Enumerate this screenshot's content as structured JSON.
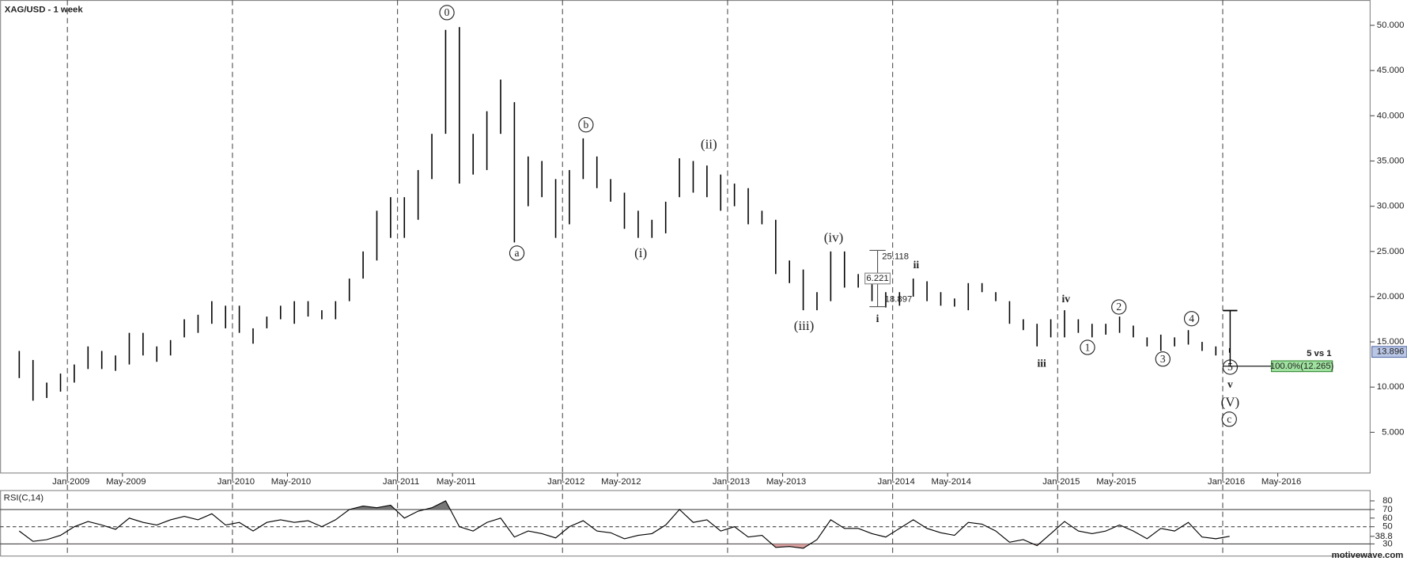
{
  "chart_data": [
    {
      "type": "ohlc",
      "title": "XAG/USD - 1 week",
      "x": [
        "Sep-2008",
        "Oct-2008",
        "Nov-2008",
        "Dec-2008",
        "Jan-2009",
        "Feb-2009",
        "Mar-2009",
        "Apr-2009",
        "May-2009",
        "Jun-2009",
        "Jul-2009",
        "Aug-2009",
        "Sep-2009",
        "Oct-2009",
        "Nov-2009",
        "Dec-2009",
        "Jan-2010",
        "Feb-2010",
        "Mar-2010",
        "Apr-2010",
        "May-2010",
        "Jun-2010",
        "Jul-2010",
        "Aug-2010",
        "Sep-2010",
        "Oct-2010",
        "Nov-2010",
        "Dec-2010",
        "Jan-2011",
        "Feb-2011",
        "Mar-2011",
        "Apr-2011",
        "May-2011",
        "Jun-2011",
        "Jul-2011",
        "Aug-2011",
        "Sep-2011",
        "Oct-2011",
        "Nov-2011",
        "Dec-2011",
        "Jan-2012",
        "Feb-2012",
        "Mar-2012",
        "Apr-2012",
        "May-2012",
        "Jun-2012",
        "Jul-2012",
        "Aug-2012",
        "Sep-2012",
        "Oct-2012",
        "Nov-2012",
        "Dec-2012",
        "Jan-2013",
        "Feb-2013",
        "Mar-2013",
        "Apr-2013",
        "May-2013",
        "Jun-2013",
        "Jul-2013",
        "Aug-2013",
        "Sep-2013",
        "Oct-2013",
        "Nov-2013",
        "Dec-2013",
        "Jan-2014",
        "Feb-2014",
        "Mar-2014",
        "Apr-2014",
        "May-2014",
        "Jun-2014",
        "Jul-2014",
        "Aug-2014",
        "Sep-2014",
        "Oct-2014",
        "Nov-2014",
        "Dec-2014",
        "Jan-2015",
        "Feb-2015",
        "Mar-2015",
        "Apr-2015",
        "May-2015",
        "Jun-2015",
        "Jul-2015",
        "Aug-2015",
        "Sep-2015",
        "Oct-2015",
        "Nov-2015",
        "Dec-2015",
        "Jan-2016"
      ],
      "high": [
        14,
        13,
        10.5,
        11.5,
        12.5,
        14.5,
        14,
        13.5,
        16,
        16,
        14.5,
        15.2,
        17.5,
        18,
        19.5,
        19,
        19,
        16.5,
        17.8,
        19,
        19.5,
        19.5,
        18.5,
        19.5,
        22,
        25,
        29.5,
        31,
        31,
        34,
        38,
        49.5,
        49.8,
        38,
        40.5,
        44,
        41.5,
        35.5,
        35,
        33,
        34,
        37.5,
        35.5,
        33,
        31.5,
        29.5,
        28.5,
        30.5,
        35.3,
        35,
        34.5,
        33.5,
        32.5,
        32,
        29.5,
        28.5,
        24,
        23,
        20.5,
        25,
        25,
        22.5,
        22,
        20.5,
        20.5,
        22,
        21.7,
        20.5,
        19.8,
        21.5,
        21.5,
        20.5,
        19.5,
        17.5,
        17,
        17.5,
        18.5,
        17.5,
        17,
        17,
        17.8,
        16.8,
        15.5,
        15.8,
        15.5,
        16.3,
        15,
        14.5,
        14.3
      ],
      "low": [
        11,
        8.5,
        8.8,
        9.5,
        10.5,
        12,
        12,
        11.8,
        12.5,
        13.5,
        12.8,
        13.5,
        15.5,
        16,
        17,
        16.5,
        16,
        14.8,
        16.5,
        17.5,
        17,
        17.8,
        17.5,
        17.5,
        19.5,
        22,
        24,
        26.5,
        26.5,
        28.5,
        33,
        38,
        32.5,
        33.5,
        34,
        38,
        26,
        30,
        31,
        26.5,
        28,
        33,
        32,
        30.5,
        27.5,
        26.5,
        26.5,
        27,
        31,
        31.5,
        31,
        29.5,
        30,
        28,
        28,
        22.5,
        21.5,
        18.5,
        18.5,
        19.5,
        21,
        21,
        19.5,
        18.8,
        19,
        20,
        19.5,
        19,
        18.9,
        18.5,
        20.5,
        19.5,
        17,
        16.3,
        14.5,
        15.5,
        15.5,
        16,
        15.5,
        15.8,
        16,
        15.5,
        14.5,
        14,
        14.5,
        14.7,
        14,
        13.5,
        13.8
      ],
      "color": "#000000",
      "ylim": [
        0.5,
        52.8
      ],
      "yticks": [
        {
          "value": 5,
          "label": "5.000"
        },
        {
          "value": 10,
          "label": "10.000"
        },
        {
          "value": 15,
          "label": "15.000"
        },
        {
          "value": 20,
          "label": "20.000"
        },
        {
          "value": 25,
          "label": "25.000"
        },
        {
          "value": 30,
          "label": "30.000"
        },
        {
          "value": 35,
          "label": "35.000"
        },
        {
          "value": 40,
          "label": "40.000"
        },
        {
          "value": 45,
          "label": "45.000"
        },
        {
          "value": 50,
          "label": "50.000"
        }
      ],
      "xticks": [
        "Jan-2009",
        "May-2009",
        "Jan-2010",
        "May-2010",
        "Jan-2011",
        "May-2011",
        "Jan-2012",
        "May-2012",
        "Jan-2013",
        "May-2013",
        "Jan-2014",
        "May-2014",
        "Jan-2015",
        "May-2015",
        "Jan-2016",
        "May-2016"
      ],
      "last": 13.896,
      "annotations": [
        "0",
        "a",
        "b",
        "(i)",
        "(ii)",
        "(iii)",
        "(iv)",
        "i",
        "ii",
        "iii",
        "iv",
        "1",
        "2",
        "3",
        "4",
        "5",
        "v",
        "(V)",
        "c"
      ],
      "measure": {
        "high": 25.118,
        "low": 18.897,
        "diff": 6.221
      },
      "range_label": "100.0%(12.265)",
      "range_note": "5 vs 1"
    },
    {
      "type": "line",
      "label": "RSI(C,14)",
      "values": [
        45,
        33,
        35,
        40,
        50,
        56,
        52,
        47,
        60,
        55,
        52,
        58,
        62,
        58,
        65,
        52,
        55,
        45,
        55,
        58,
        55,
        57,
        50,
        58,
        70,
        74,
        72,
        75,
        60,
        68,
        72,
        80,
        50,
        45,
        55,
        60,
        38,
        45,
        42,
        37,
        50,
        57,
        45,
        43,
        36,
        40,
        42,
        52,
        70,
        55,
        58,
        45,
        50,
        38,
        40,
        26,
        27,
        25,
        35,
        58,
        48,
        48,
        42,
        38,
        48,
        58,
        48,
        43,
        40,
        55,
        53,
        45,
        32,
        35,
        28,
        42,
        56,
        45,
        42,
        45,
        52,
        45,
        36,
        48,
        45,
        55,
        38,
        36,
        38.8
      ],
      "color": "#000000",
      "ylim": [
        15.4,
        92.5
      ],
      "yticks": [
        80,
        70,
        60,
        50,
        38.8,
        30
      ],
      "bands": [
        30,
        70
      ],
      "midline": 50
    }
  ],
  "footer": "motivewave.com"
}
